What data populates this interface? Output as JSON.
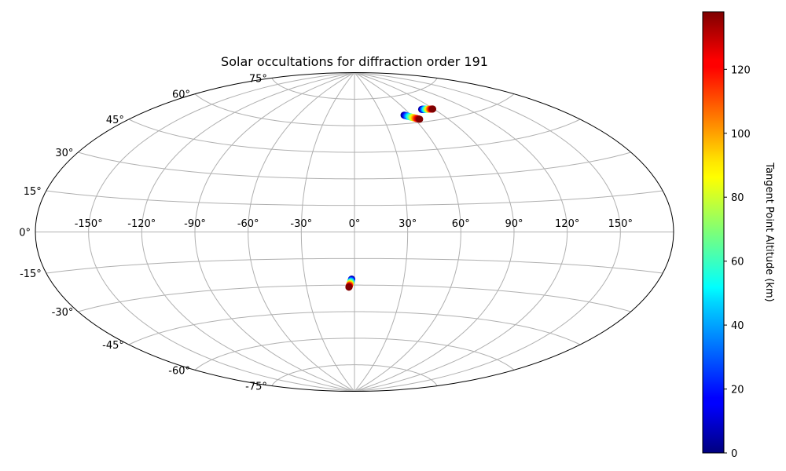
{
  "chart_data": {
    "type": "scatter",
    "projection": "aitoff",
    "title": "Solar occultations for diffraction order 191",
    "longitude_ticks": [
      -150,
      -120,
      -90,
      -60,
      -30,
      0,
      30,
      60,
      90,
      120,
      150
    ],
    "longitude_tick_labels": [
      "-150°",
      "-120°",
      "-90°",
      "-60°",
      "-30°",
      "0°",
      "30°",
      "60°",
      "90°",
      "120°",
      "150°"
    ],
    "latitude_ticks": [
      -75,
      -60,
      -45,
      -30,
      -15,
      0,
      15,
      30,
      45,
      60,
      75
    ],
    "latitude_tick_labels": [
      "-75°",
      "-60°",
      "-45°",
      "-30°",
      "-15°",
      "0°",
      "15°",
      "30°",
      "45°",
      "60°",
      "75°"
    ],
    "grid": true,
    "colorbar": {
      "label": "Tangent Point Altitude (km)",
      "range": [
        0,
        138
      ],
      "ticks": [
        0,
        20,
        40,
        60,
        80,
        100,
        120
      ],
      "tick_labels": [
        "0",
        "20",
        "40",
        "60",
        "80",
        "100",
        "120"
      ],
      "colormap": "jet"
    },
    "series": [
      {
        "lon_start": 53.0,
        "lat_start": 64.6,
        "lon_end": 64.5,
        "lat_end": 61.6,
        "alt_range": [
          0,
          138
        ]
      },
      {
        "lon_start": 77.5,
        "lat_start": 66.4,
        "lon_end": 89.0,
        "lat_end": 65.6,
        "alt_range": [
          0,
          138
        ]
      },
      {
        "lon_start": -1.7,
        "lat_start": -26.6,
        "lon_end": -3.5,
        "lat_end": -31.2,
        "alt_range": [
          0,
          138
        ]
      }
    ]
  }
}
